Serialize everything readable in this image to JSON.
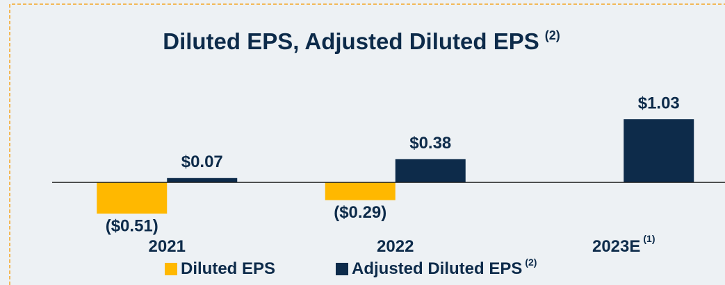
{
  "chart_data": {
    "type": "bar",
    "title": "Diluted EPS, Adjusted Diluted EPS",
    "title_note": "(2)",
    "categories": [
      "2021",
      "2022",
      "2023E"
    ],
    "category_notes": [
      null,
      null,
      "(1)"
    ],
    "series": [
      {
        "name": "Diluted EPS",
        "color": "#ffb800",
        "values": [
          -0.51,
          -0.29,
          null
        ],
        "value_labels": [
          "($0.51)",
          "($0.29)",
          null
        ]
      },
      {
        "name": "Adjusted Diluted EPS",
        "note": "(2)",
        "color": "#0d2b4a",
        "values": [
          0.07,
          0.38,
          1.03
        ],
        "value_labels": [
          "$0.07",
          "$0.38",
          "$1.03"
        ]
      }
    ],
    "ylim": [
      -1,
      1.5
    ]
  }
}
